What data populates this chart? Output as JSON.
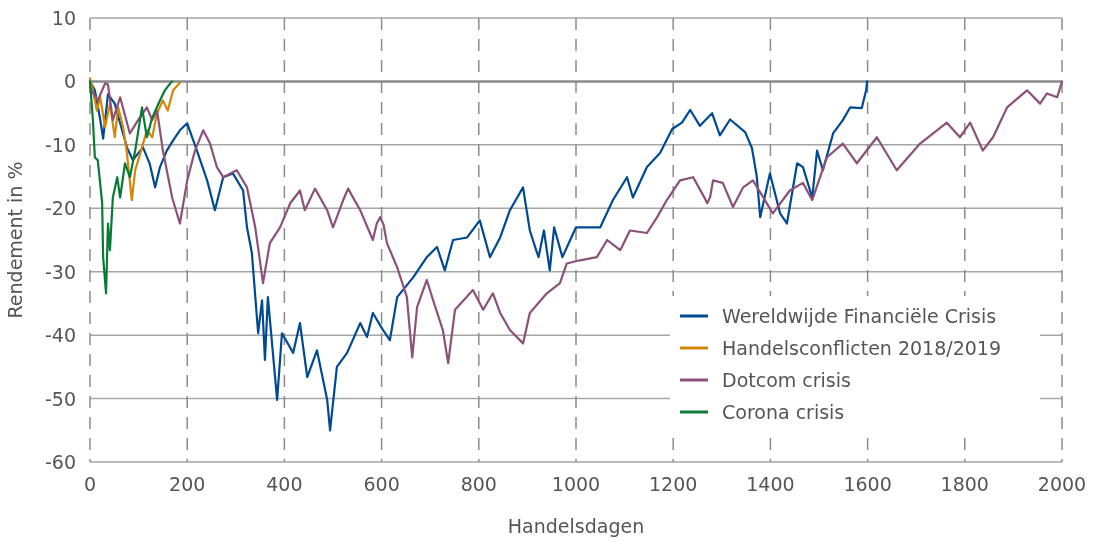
{
  "chart_data": {
    "type": "line",
    "xlabel": "Handelsdagen",
    "ylabel": "Rendement in %",
    "xlim": [
      0,
      2000
    ],
    "xticks": [
      0,
      200,
      400,
      600,
      800,
      1000,
      1200,
      1400,
      1600,
      1800,
      2000
    ],
    "ylim": [
      -60,
      10
    ],
    "yticks": [
      -60,
      -50,
      -40,
      -30,
      -20,
      -10,
      0,
      10
    ],
    "grid": true,
    "legend": "bottom right",
    "line_style": "solid",
    "marker": "none",
    "series": [
      {
        "name": "Wereldwijde Financiële Crisis",
        "color": "#004a93",
        "x": [
          0,
          10,
          21,
          27,
          37,
          51,
          62,
          76,
          88,
          109,
          123,
          134,
          144,
          158,
          171,
          185,
          200,
          220,
          241,
          257,
          274,
          294,
          315,
          323,
          333,
          346,
          354,
          360,
          366,
          385,
          395,
          418,
          432,
          447,
          467,
          488,
          494,
          508,
          529,
          556,
          570,
          582,
          603,
          617,
          632,
          665,
          693,
          714,
          730,
          747,
          776,
          802,
          823,
          844,
          864,
          891,
          905,
          918,
          923,
          934,
          946,
          955,
          972,
          1000,
          1050,
          1076,
          1105,
          1117,
          1146,
          1173,
          1198,
          1218,
          1235,
          1255,
          1280,
          1296,
          1317,
          1348,
          1362,
          1372,
          1379,
          1399,
          1420,
          1434,
          1455,
          1467,
          1486,
          1496,
          1508,
          1529,
          1549,
          1564,
          1588,
          1597,
          1599
        ],
        "values": [
          0,
          -1.4,
          -6,
          -9,
          -2,
          -3.5,
          -6.6,
          -10.4,
          -12.4,
          -10.4,
          -13,
          -16.7,
          -13.5,
          -10.9,
          -9.3,
          -7.7,
          -6.6,
          -10.9,
          -15.6,
          -20.3,
          -15.1,
          -14.5,
          -17.2,
          -23,
          -27,
          -39.7,
          -34.5,
          -43.9,
          -34,
          -50.2,
          -39.7,
          -42.8,
          -38.1,
          -46.6,
          -42.4,
          -50.2,
          -55,
          -45,
          -42.8,
          -38.1,
          -40.3,
          -36.5,
          -39.2,
          -40.8,
          -34,
          -30.9,
          -27.7,
          -26.1,
          -29.8,
          -25,
          -24.6,
          -21.9,
          -27.7,
          -24.6,
          -20.3,
          -16.7,
          -23.5,
          -26.6,
          -27.7,
          -23.5,
          -29.8,
          -23,
          -27.7,
          -23,
          -23,
          -18.7,
          -15.1,
          -18.3,
          -13.5,
          -11.3,
          -7.5,
          -6.5,
          -4.5,
          -7,
          -5,
          -8.5,
          -6,
          -8,
          -10.5,
          -15,
          -21.4,
          -14.5,
          -20.8,
          -22.4,
          -12.9,
          -13.5,
          -18.3,
          -10.9,
          -14,
          -8.2,
          -6.1,
          -4.1,
          -4.2,
          -1.4,
          0
        ]
      },
      {
        "name": "Handelsconflicten 2018/2019",
        "color": "#d4860b",
        "x": [
          0,
          6,
          14,
          21,
          31,
          41,
          51,
          58,
          68,
          76,
          86,
          93,
          107,
          117,
          128,
          138,
          150,
          160,
          171,
          185
        ],
        "values": [
          0.5,
          -1.4,
          -4.6,
          -2.5,
          -7.2,
          -3.5,
          -8.8,
          -4.1,
          -7.2,
          -11.3,
          -18.7,
          -14,
          -10.4,
          -7.7,
          -8.8,
          -5,
          -3,
          -4.6,
          -1.4,
          -0.2
        ]
      },
      {
        "name": "Dotcom crisis",
        "color": "#8b5179",
        "x": [
          0,
          16,
          31,
          37,
          47,
          62,
          82,
          99,
          117,
          128,
          138,
          150,
          169,
          185,
          200,
          216,
          233,
          247,
          261,
          274,
          302,
          323,
          340,
          356,
          370,
          391,
          412,
          432,
          442,
          463,
          488,
          500,
          521,
          531,
          556,
          582,
          590,
          597,
          604,
          611,
          632,
          652,
          663,
          673,
          693,
          706,
          726,
          737,
          751,
          788,
          809,
          829,
          844,
          864,
          891,
          905,
          940,
          967,
          981,
          1008,
          1043,
          1064,
          1091,
          1111,
          1146,
          1167,
          1187,
          1214,
          1241,
          1262,
          1270,
          1276,
          1282,
          1302,
          1323,
          1344,
          1364,
          1405,
          1440,
          1467,
          1486,
          1516,
          1549,
          1578,
          1619,
          1660,
          1708,
          1763,
          1790,
          1811,
          1837,
          1858,
          1887,
          1928,
          1955,
          1969,
          1990,
          2000
        ],
        "values": [
          -1,
          -3,
          -0.3,
          -0.5,
          -6.1,
          -2.5,
          -8.2,
          -6.1,
          -4.1,
          -6.1,
          -4.6,
          -10.9,
          -18.3,
          -22.4,
          -15.6,
          -10.9,
          -7.7,
          -9.8,
          -13.5,
          -15.1,
          -14,
          -16.7,
          -23,
          -31.8,
          -25.5,
          -23,
          -19.2,
          -17.2,
          -20.3,
          -16.9,
          -20.3,
          -23,
          -18.7,
          -16.9,
          -20.3,
          -25,
          -22.4,
          -21.4,
          -22.6,
          -25.5,
          -29.3,
          -34,
          -43.5,
          -35.6,
          -31.3,
          -34.5,
          -39.2,
          -44.4,
          -36,
          -32.9,
          -36,
          -33.4,
          -36.5,
          -39.2,
          -41.3,
          -36.5,
          -33.4,
          -31.8,
          -28.7,
          -28.2,
          -27.7,
          -25,
          -26.6,
          -23.5,
          -23.9,
          -21.4,
          -18.7,
          -15.6,
          -15.1,
          -18,
          -19.2,
          -18.2,
          -15.6,
          -16,
          -19.8,
          -16.7,
          -15.6,
          -20.8,
          -17.2,
          -16,
          -18.7,
          -12,
          -9.8,
          -12.9,
          -8.8,
          -14,
          -9.8,
          -6.5,
          -8.8,
          -6.5,
          -10.9,
          -8.8,
          -4.1,
          -1.4,
          -3.5,
          -1.9,
          -2.5,
          0
        ]
      },
      {
        "name": "Corona crisis",
        "color": "#0a7a35",
        "x": [
          0,
          6,
          10,
          16,
          25,
          27,
          33,
          37,
          41,
          47,
          56,
          62,
          72,
          82,
          93,
          107,
          117,
          128,
          144,
          154,
          165,
          169
        ],
        "values": [
          0,
          -6.1,
          -12,
          -12.4,
          -19.2,
          -27.7,
          -33.4,
          -22.4,
          -26.6,
          -18.3,
          -15.1,
          -18.3,
          -12.9,
          -15.1,
          -10.9,
          -4.1,
          -8.8,
          -5.7,
          -3,
          -1.4,
          -0.3,
          0
        ]
      }
    ]
  }
}
